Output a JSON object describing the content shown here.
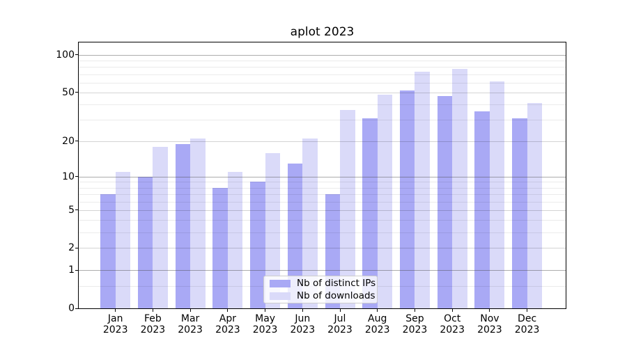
{
  "chart_data": {
    "type": "bar",
    "title": "aplot 2023",
    "categories": [
      "Jan",
      "Feb",
      "Mar",
      "Apr",
      "May",
      "Jun",
      "Jul",
      "Aug",
      "Sep",
      "Oct",
      "Nov",
      "Dec"
    ],
    "year_label": "2023",
    "series": [
      {
        "name": "Nb of distinct IPs",
        "color": "#a9a9f5",
        "values": [
          7,
          10,
          19,
          8,
          9,
          13,
          7,
          31,
          52,
          47,
          35,
          31
        ]
      },
      {
        "name": "Nb of downloads",
        "color": "#dadaf9",
        "values": [
          11,
          18,
          21,
          11,
          16,
          21,
          36,
          48,
          73,
          77,
          61,
          41
        ]
      }
    ],
    "yscale": "log1p",
    "ylim": [
      0,
      126
    ],
    "yticks": [
      0,
      1,
      2,
      5,
      10,
      20,
      50,
      100
    ],
    "decade_ticks": [
      1,
      10,
      100
    ],
    "minor_gridlines": [
      0.5,
      3,
      4,
      6,
      7,
      8,
      9,
      30,
      40,
      60,
      70,
      80,
      90
    ],
    "grid": true,
    "legend_position": "lower center"
  }
}
